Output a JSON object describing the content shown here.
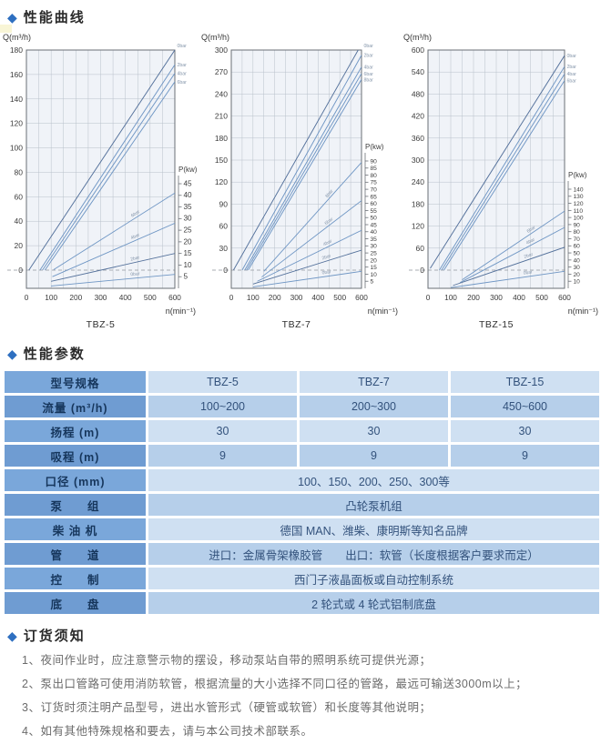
{
  "sections": {
    "bullet_icon": "◆",
    "curves_heading": "性能曲线",
    "params_heading": "性能参数",
    "notes_heading": "订货须知"
  },
  "colors": {
    "accent_diamond": "#2e6fc0",
    "curve_line": "#6f96c4",
    "curve_line_dark": "#54719b",
    "plot_bg": "#f0f3f8",
    "grid": "#b8c0ca",
    "table_label_bg_light": "#7aa7da",
    "table_label_bg_dark": "#6f9cd2",
    "table_cell_light": "#cfe0f2",
    "table_cell_dark": "#b6cfea"
  },
  "chart_data": [
    {
      "type": "line",
      "name": "TBZ-5",
      "y_axis": {
        "label": "Q(m³/h)",
        "min": 0,
        "max": 180,
        "step": 20
      },
      "x_axis": {
        "label": "n(min⁻¹)",
        "min": 0,
        "max": 600,
        "step": 100
      },
      "p_axis": {
        "label": "P(kw)",
        "min": 5,
        "max": 45,
        "step": 5
      },
      "q_curves": [
        {
          "label": "0bar",
          "points": [
            [
              10,
              0
            ],
            [
              600,
              180
            ]
          ],
          "dark": true
        },
        {
          "label": "2bar",
          "points": [
            [
              55,
              0
            ],
            [
              600,
              168
            ]
          ]
        },
        {
          "label": "4bar",
          "points": [
            [
              65,
              0
            ],
            [
              600,
              161
            ]
          ]
        },
        {
          "label": "6bar",
          "points": [
            [
              75,
              0
            ],
            [
              600,
              154
            ]
          ]
        }
      ],
      "p_curves": [
        {
          "label": "6bar",
          "points": [
            [
              110,
              8
            ],
            [
              600,
              41
            ]
          ]
        },
        {
          "label": "4bar",
          "points": [
            [
              105,
              5
            ],
            [
              600,
              28
            ]
          ]
        },
        {
          "label": "2bar",
          "points": [
            [
              100,
              3
            ],
            [
              600,
              15
            ]
          ],
          "dark": true
        },
        {
          "label": "0bar",
          "points": [
            [
              100,
              1
            ],
            [
              600,
              6
            ]
          ]
        }
      ]
    },
    {
      "type": "line",
      "name": "TBZ-7",
      "y_axis": {
        "label": "Q(m³/h)",
        "min": 0,
        "max": 300,
        "step": 30
      },
      "x_axis": {
        "label": "n(min⁻¹)",
        "min": 0,
        "max": 600,
        "step": 100
      },
      "p_axis": {
        "label": "P(kw)",
        "min": 5,
        "max": 90,
        "step": 5
      },
      "q_curves": [
        {
          "label": "0bar",
          "points": [
            [
              10,
              0
            ],
            [
              600,
              308
            ]
          ],
          "dark": true
        },
        {
          "label": "2bar",
          "points": [
            [
              50,
              0
            ],
            [
              600,
              293
            ]
          ]
        },
        {
          "label": "4bar",
          "points": [
            [
              62,
              0
            ],
            [
              600,
              277
            ]
          ]
        },
        {
          "label": "6bar",
          "points": [
            [
              70,
              0
            ],
            [
              600,
              268
            ]
          ]
        },
        {
          "label": "8bar",
          "points": [
            [
              78,
              0
            ],
            [
              600,
              260
            ]
          ]
        }
      ],
      "p_curves": [
        {
          "label": "8bar",
          "points": [
            [
              150,
              12
            ],
            [
              600,
              89
            ]
          ]
        },
        {
          "label": "6bar",
          "points": [
            [
              140,
              8
            ],
            [
              600,
              62
            ]
          ]
        },
        {
          "label": "4bar",
          "points": [
            [
              120,
              5
            ],
            [
              600,
              41
            ]
          ]
        },
        {
          "label": "2bar",
          "points": [
            [
              100,
              3
            ],
            [
              600,
              27
            ]
          ],
          "dark": true
        },
        {
          "label": "0bar",
          "points": [
            [
              100,
              1
            ],
            [
              600,
              12
            ]
          ]
        }
      ]
    },
    {
      "type": "line",
      "name": "TBZ-15",
      "y_axis": {
        "label": "Q(m³/h)",
        "min": 0,
        "max": 600,
        "step": 60
      },
      "x_axis": {
        "label": "n(min⁻¹)",
        "min": 0,
        "max": 600,
        "step": 100
      },
      "p_axis": {
        "label": "P(kw)",
        "min": 10,
        "max": 140,
        "step": 10
      },
      "q_curves": [
        {
          "label": "0bar",
          "points": [
            [
              10,
              5
            ],
            [
              600,
              585
            ]
          ],
          "dark": true
        },
        {
          "label": "2bar",
          "points": [
            [
              50,
              0
            ],
            [
              600,
              555
            ]
          ]
        },
        {
          "label": "4bar",
          "points": [
            [
              60,
              0
            ],
            [
              600,
              535
            ]
          ]
        },
        {
          "label": "6bar",
          "points": [
            [
              70,
              0
            ],
            [
              600,
              517
            ]
          ]
        }
      ],
      "p_curves": [
        {
          "label": "6bar",
          "points": [
            [
              150,
              12
            ],
            [
              600,
              109
            ]
          ]
        },
        {
          "label": "4bar",
          "points": [
            [
              140,
              8
            ],
            [
              600,
              86
            ]
          ]
        },
        {
          "label": "2bar",
          "points": [
            [
              110,
              4
            ],
            [
              600,
              58
            ]
          ],
          "dark": true
        },
        {
          "label": "0bar",
          "points": [
            [
              100,
              1
            ],
            [
              600,
              24
            ]
          ]
        }
      ]
    }
  ],
  "table": {
    "rows": [
      {
        "label": "型号规格",
        "cells": [
          "TBZ-5",
          "TBZ-7",
          "TBZ-15"
        ]
      },
      {
        "label": "流量 (m³/h)",
        "cells": [
          "100~200",
          "200~300",
          "450~600"
        ]
      },
      {
        "label": "扬程 (m)",
        "cells": [
          "30",
          "30",
          "30"
        ]
      },
      {
        "label": "吸程 (m)",
        "cells": [
          "9",
          "9",
          "9"
        ]
      },
      {
        "label": "口径 (mm)",
        "span": "100、150、200、250、300等"
      },
      {
        "label": "泵　　组",
        "span": "凸轮泵机组"
      },
      {
        "label": "柴 油 机",
        "span": "德国 MAN、潍柴、康明斯等知名品牌"
      },
      {
        "label": "管　　道",
        "span": "进口：金属骨架橡胶管　　出口：软管（长度根据客户要求而定）"
      },
      {
        "label": "控　　制",
        "span": "西门子液晶面板或自动控制系统"
      },
      {
        "label": "底　　盘",
        "span": "2 轮式或 4 轮式铝制底盘"
      }
    ]
  },
  "notes": [
    "1、夜间作业时，应注意警示物的摆设，移动泵站自带的照明系统可提供光源；",
    "2、泵出口管路可使用消防软管，根据流量的大小选择不同口径的管路，最远可输送3000m以上；",
    "3、订货时须注明产品型号，进出水管形式（硬管或软管）和长度等其他说明；",
    "4、如有其他特殊规格和要去，请与本公司技术部联系。"
  ]
}
